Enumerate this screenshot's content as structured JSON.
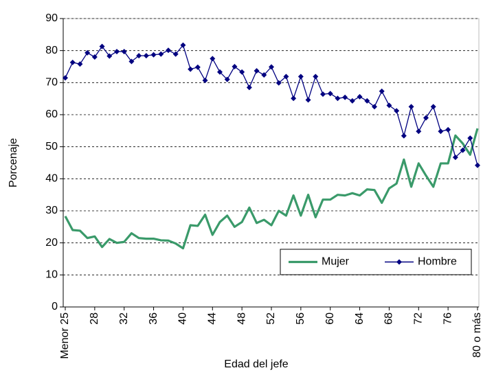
{
  "chart_data": {
    "type": "line",
    "xlabel": "Edad del jefe",
    "ylabel": "Porcenaje",
    "categories": [
      "Menor 25",
      null,
      null,
      null,
      "28",
      null,
      null,
      null,
      "32",
      null,
      null,
      null,
      "36",
      null,
      null,
      null,
      "40",
      null,
      null,
      null,
      "44",
      null,
      null,
      null,
      "48",
      null,
      null,
      null,
      "52",
      null,
      null,
      null,
      "56",
      null,
      null,
      null,
      "60",
      null,
      null,
      null,
      "64",
      null,
      null,
      null,
      "68",
      null,
      null,
      null,
      "72",
      null,
      null,
      null,
      "76",
      null,
      null,
      null,
      "80 o más"
    ],
    "series": [
      {
        "name": "Mujer",
        "color": "#3a9a6a",
        "marker": false,
        "values": [
          28.3,
          24,
          23.8,
          21.5,
          22,
          18.7,
          21.2,
          20,
          20.3,
          23,
          21.5,
          21.3,
          21.3,
          20.8,
          20.7,
          19.8,
          18.3,
          25.5,
          25.3,
          28.8,
          22.5,
          26.5,
          28.5,
          25,
          26.5,
          31,
          26.2,
          27.2,
          25.5,
          30,
          28.5,
          34.8,
          28.5,
          35,
          28,
          33.5,
          33.5,
          35,
          34.8,
          35.5,
          34.8,
          36.7,
          36.5,
          32.5,
          37,
          38.5,
          46,
          37.5,
          44.8,
          41,
          37.5,
          44.8,
          44.8,
          53.5,
          51,
          47.5,
          55.7
        ]
      },
      {
        "name": "Hombre",
        "color": "#000080",
        "marker": true,
        "values": [
          71.5,
          76.3,
          75.8,
          79.3,
          78,
          81.3,
          78.3,
          79.7,
          79.7,
          76.6,
          78.4,
          78.4,
          78.7,
          78.9,
          80.1,
          78.9,
          81.7,
          74.2,
          74.8,
          70.7,
          77.5,
          73.3,
          71,
          75,
          73.3,
          68.5,
          73.7,
          72.4,
          74.9,
          69.9,
          71.9,
          65.1,
          71.9,
          64.6,
          71.9,
          66.4,
          66.6,
          65.1,
          65.4,
          64.3,
          65.6,
          64.3,
          62.5,
          67.3,
          62.9,
          61.2,
          53.4,
          62.5,
          54.8,
          59,
          62.5,
          54.8,
          55.3,
          46.7,
          48.9,
          52.7,
          44.2
        ]
      }
    ],
    "ylim": [
      0,
      90
    ],
    "yticks": [
      0,
      10,
      20,
      30,
      40,
      50,
      60,
      70,
      80,
      90
    ],
    "grid": true,
    "legend": "lower right"
  }
}
